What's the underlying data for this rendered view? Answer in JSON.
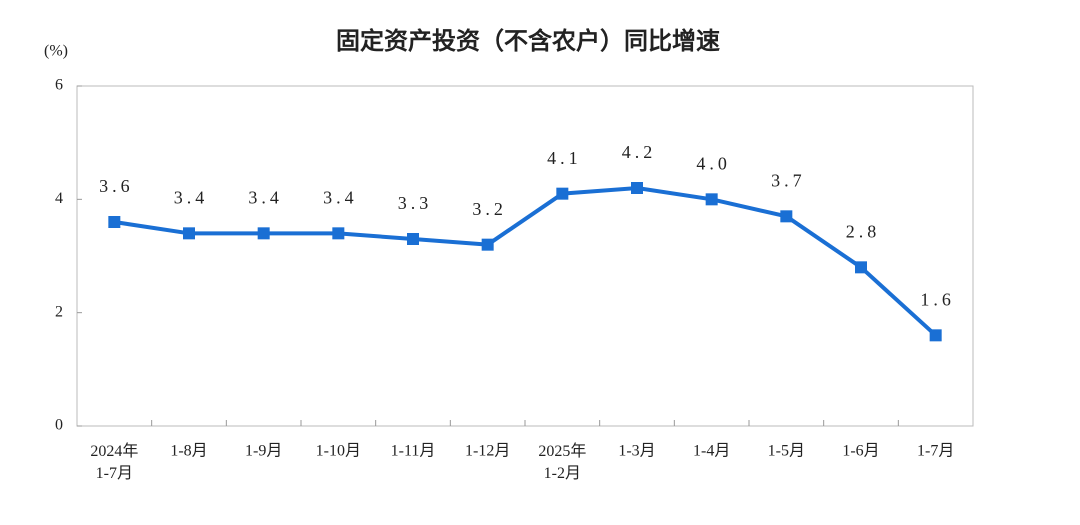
{
  "chart_data": {
    "type": "line",
    "title": "固定资产投资（不含农户）同比增速",
    "y_unit": "(%)",
    "categories": [
      "2024年\n1-7月",
      "1-8月",
      "1-9月",
      "1-10月",
      "1-11月",
      "1-12月",
      "2025年\n1-2月",
      "1-3月",
      "1-4月",
      "1-5月",
      "1-6月",
      "1-7月"
    ],
    "series": [
      {
        "color": "#1a6fd4",
        "values": [
          3.6,
          3.4,
          3.4,
          3.4,
          3.3,
          3.2,
          4.1,
          4.2,
          4.0,
          3.7,
          2.8,
          1.6
        ],
        "value_labels": [
          "3.6",
          "3.4",
          "3.4",
          "3.4",
          "3.3",
          "3.2",
          "4.1",
          "4.2",
          "4.0",
          "3.7",
          "2.8",
          "1.6"
        ]
      }
    ],
    "ylim": [
      0,
      6
    ],
    "yticks": [
      0,
      2,
      4,
      6
    ]
  }
}
